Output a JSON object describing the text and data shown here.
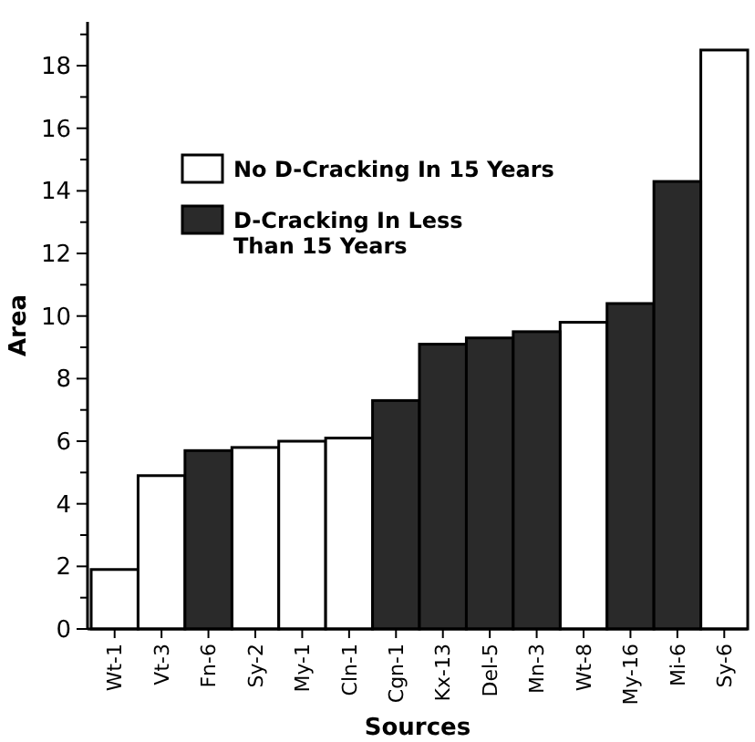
{
  "chart_data": {
    "type": "bar",
    "stacked": true,
    "xlabel": "Sources",
    "ylabel": "Area",
    "categories": [
      "Wt-1",
      "Vt-3",
      "Fn-6",
      "Sy-2",
      "My-1",
      "Cln-1",
      "Cgn-1",
      "Kx-13",
      "Del-5",
      "Mn-3",
      "Wt-8",
      "My-16",
      "Mi-6",
      "Sy-6"
    ],
    "series": [
      {
        "name": "No D-Cracking In 15 Years",
        "color": "#ffffff",
        "values": [
          1.9,
          4.9,
          null,
          5.8,
          6.0,
          6.1,
          null,
          null,
          null,
          null,
          9.8,
          null,
          null,
          18.5
        ]
      },
      {
        "name": "D-Cracking In Less Than 15 Years",
        "color": "#2a2a2a",
        "values": [
          null,
          null,
          5.7,
          null,
          null,
          null,
          7.3,
          9.1,
          9.3,
          9.5,
          null,
          10.4,
          14.3,
          null
        ]
      }
    ],
    "ylim": [
      0,
      19.4
    ],
    "yticks": [
      0,
      {
        "value": 1,
        "label": null
      },
      2,
      {
        "value": 3,
        "label": null
      },
      4,
      {
        "value": 5,
        "label": null
      },
      6,
      {
        "value": 7,
        "label": null
      },
      8,
      {
        "value": 9,
        "label": null
      },
      10,
      {
        "value": 11,
        "label": null
      },
      12,
      {
        "value": 13,
        "label": null
      },
      14,
      {
        "value": 15,
        "label": null
      },
      16,
      {
        "value": 17,
        "label": null
      },
      18,
      {
        "value": 19,
        "label": null
      }
    ],
    "legend": "top left",
    "grid": false
  }
}
